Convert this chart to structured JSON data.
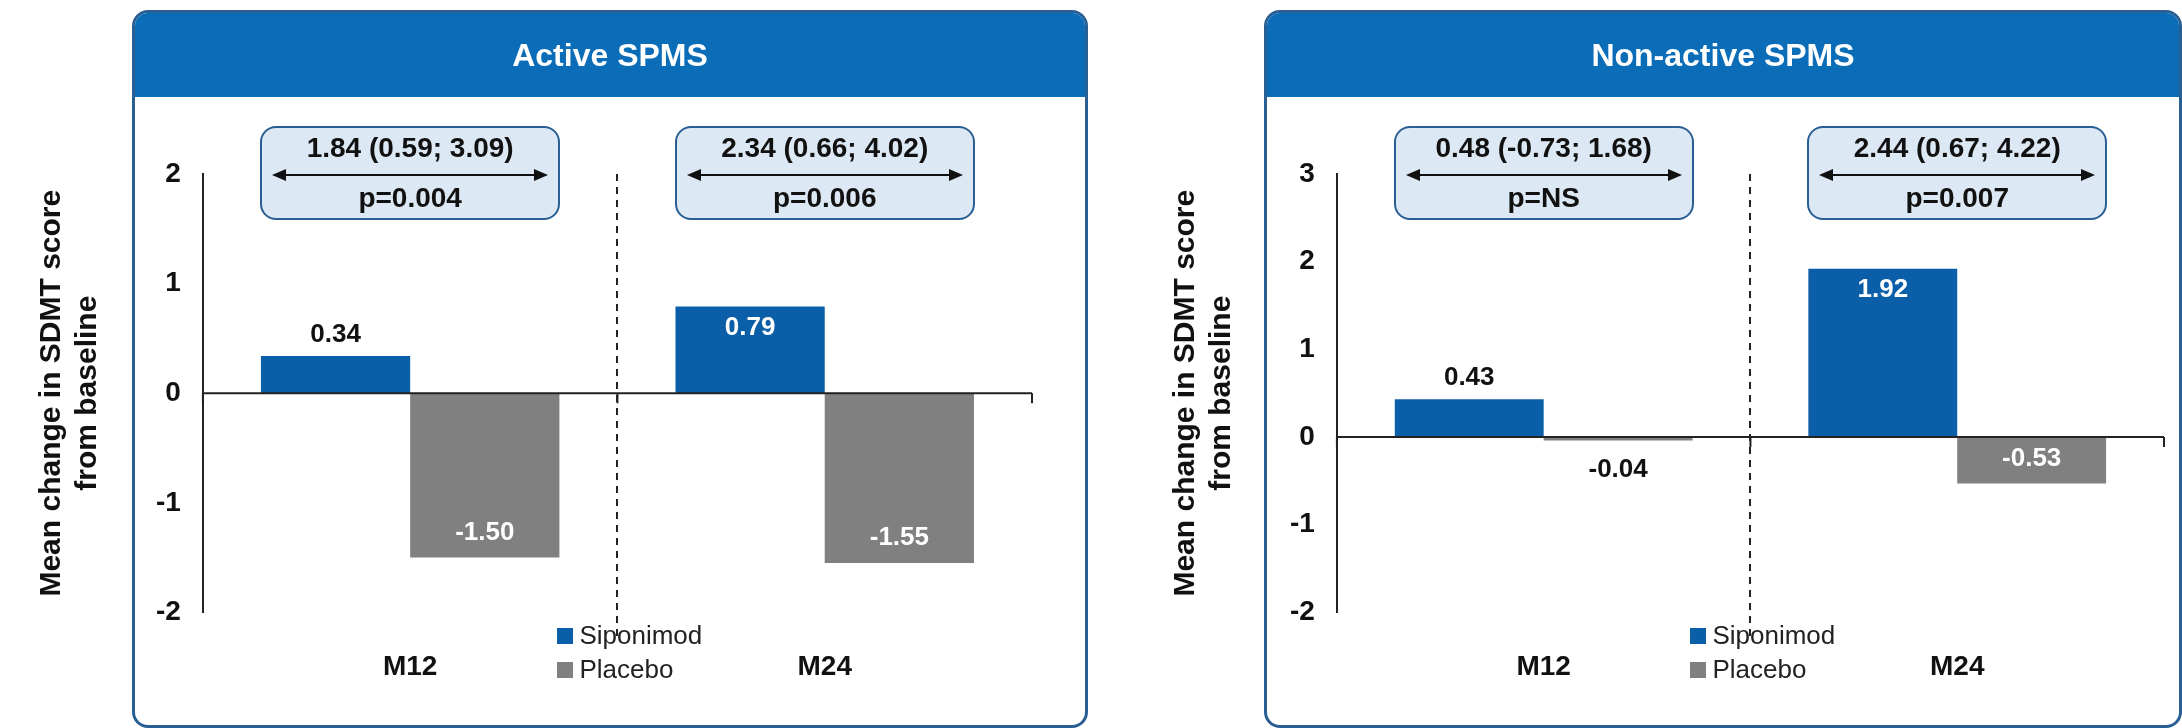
{
  "chart_data": [
    {
      "type": "bar",
      "title": "Active SPMS",
      "ylabel": "Mean change in SDMT score from baseline",
      "categories": [
        "M12",
        "M24"
      ],
      "series": [
        {
          "name": "Siponimod",
          "color": "#0b5ea8",
          "values": [
            0.34,
            0.79
          ],
          "value_labels": [
            "0.34",
            "0.79"
          ]
        },
        {
          "name": "Placebo",
          "color": "#808080",
          "values": [
            -1.5,
            -1.55
          ],
          "value_labels": [
            "-1.50",
            "-1.55"
          ]
        }
      ],
      "ylim": [
        -2,
        2
      ],
      "yticks": [
        -2,
        -1,
        0,
        1,
        2
      ],
      "legend": "bottom",
      "annotations": [
        "1.84 (0.59; 3.09)",
        "p=0.004",
        "2.34 (0.66; 4.02)",
        "p=0.006"
      ]
    },
    {
      "type": "bar",
      "title": "Non-active SPMS",
      "ylabel": "Mean change in SDMT score from baseline",
      "categories": [
        "M12",
        "M24"
      ],
      "series": [
        {
          "name": "Siponimod",
          "color": "#0b5ea8",
          "values": [
            0.43,
            1.92
          ],
          "value_labels": [
            "0.43",
            "1.92"
          ]
        },
        {
          "name": "Placebo",
          "color": "#808080",
          "values": [
            -0.04,
            -0.53
          ],
          "value_labels": [
            "-0.04",
            "-0.53"
          ]
        }
      ],
      "ylim": [
        -2,
        3
      ],
      "yticks": [
        -2,
        -1,
        0,
        1,
        2,
        3
      ],
      "legend": "bottom",
      "annotations": [
        "0.48 (-0.73; 1.68)",
        "p=NS",
        "2.44 (0.67; 4.22)",
        "p=0.007"
      ]
    }
  ]
}
